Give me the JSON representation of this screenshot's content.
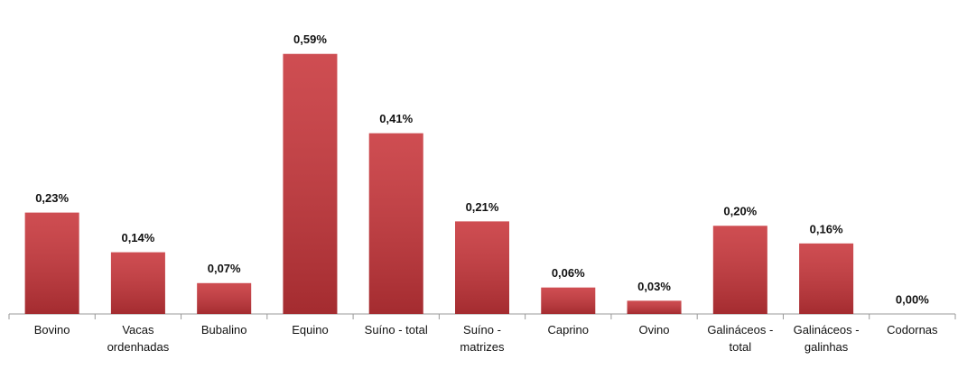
{
  "chart_data": {
    "type": "bar",
    "categories": [
      "Bovino",
      "Vacas ordenhadas",
      "Bubalino",
      "Equino",
      "Suíno - total",
      "Suíno - matrizes",
      "Caprino",
      "Ovino",
      "Galináceos - total",
      "Galináceos - galinhas",
      "Codornas"
    ],
    "values": [
      0.23,
      0.14,
      0.07,
      0.59,
      0.41,
      0.21,
      0.06,
      0.03,
      0.2,
      0.16,
      0.0
    ],
    "value_labels": [
      "0,23%",
      "0,14%",
      "0,07%",
      "0,59%",
      "0,41%",
      "0,21%",
      "0,06%",
      "0,03%",
      "0,20%",
      "0,16%",
      "0,00%"
    ],
    "color": "#c8353a",
    "ylim": [
      0,
      0.7
    ]
  }
}
